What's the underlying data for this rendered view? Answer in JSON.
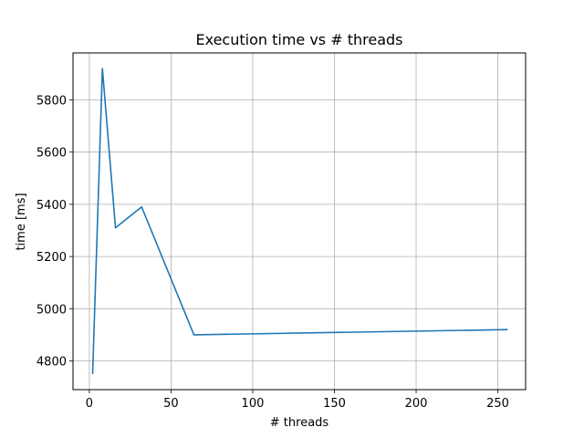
{
  "chart_data": {
    "type": "line",
    "title": "Execution time vs # threads",
    "xlabel": "# threads",
    "ylabel": "time [ms]",
    "xlim": [
      -10,
      267
    ],
    "ylim": [
      4690,
      5980
    ],
    "grid": true,
    "xticks": [
      0,
      50,
      100,
      150,
      200,
      250
    ],
    "yticks": [
      4800,
      5000,
      5200,
      5400,
      5600,
      5800
    ],
    "series": [
      {
        "color": "#1f77b4",
        "x": [
          2,
          8,
          16,
          32,
          64,
          256
        ],
        "y": [
          4750,
          5920,
          5310,
          5390,
          4900,
          4920
        ]
      }
    ]
  }
}
